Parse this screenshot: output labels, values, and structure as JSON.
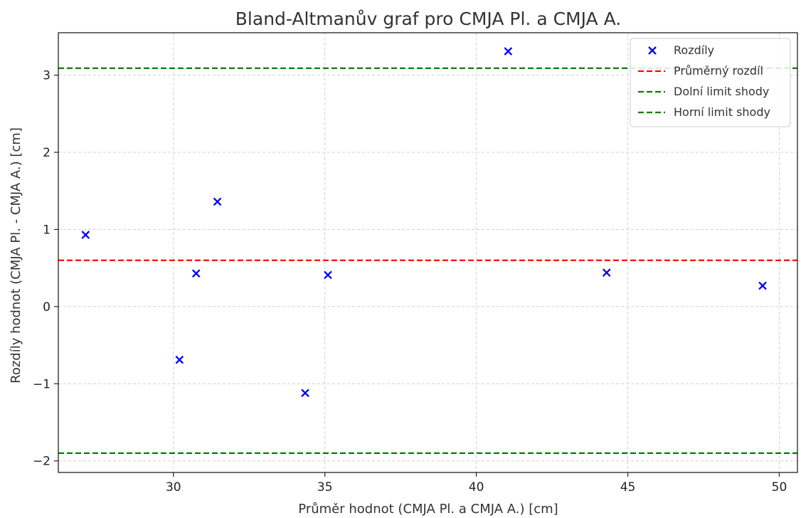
{
  "chart_data": {
    "type": "scatter",
    "title": "Bland-Altmanův graf pro CMJA Pl. a CMJA A.",
    "xlabel": "Průměr hodnot (CMJA Pl. a CMJA A.) [cm]",
    "ylabel": "Rozdíly hodnot (CMJA Pl. - CMJA A.) [cm]",
    "xlim": [
      26.2,
      50.6
    ],
    "ylim": [
      -2.15,
      3.55
    ],
    "xticks": [
      30,
      35,
      40,
      45,
      50
    ],
    "yticks": [
      -2,
      -1,
      0,
      1,
      2,
      3
    ],
    "grid": true,
    "legend_position": "top-right",
    "series": [
      {
        "name": "Rozdíly",
        "marker": "x",
        "color": "#0000ff",
        "points": [
          {
            "x": 27.1,
            "y": 0.93
          },
          {
            "x": 30.2,
            "y": -0.69
          },
          {
            "x": 30.75,
            "y": 0.43
          },
          {
            "x": 31.45,
            "y": 1.36
          },
          {
            "x": 34.35,
            "y": -1.12
          },
          {
            "x": 35.1,
            "y": 0.41
          },
          {
            "x": 41.05,
            "y": 3.31
          },
          {
            "x": 44.3,
            "y": 0.44
          },
          {
            "x": 49.45,
            "y": 0.27
          }
        ]
      }
    ],
    "reference_lines": [
      {
        "name": "Průměrný rozdíl",
        "y": 0.6,
        "color": "#ff0000",
        "style": "dashed"
      },
      {
        "name": "Dolní limit shody",
        "y": -1.9,
        "color": "#008000",
        "style": "dashed"
      },
      {
        "name": "Horní limit shody",
        "y": 3.09,
        "color": "#008000",
        "style": "dashed"
      }
    ]
  }
}
